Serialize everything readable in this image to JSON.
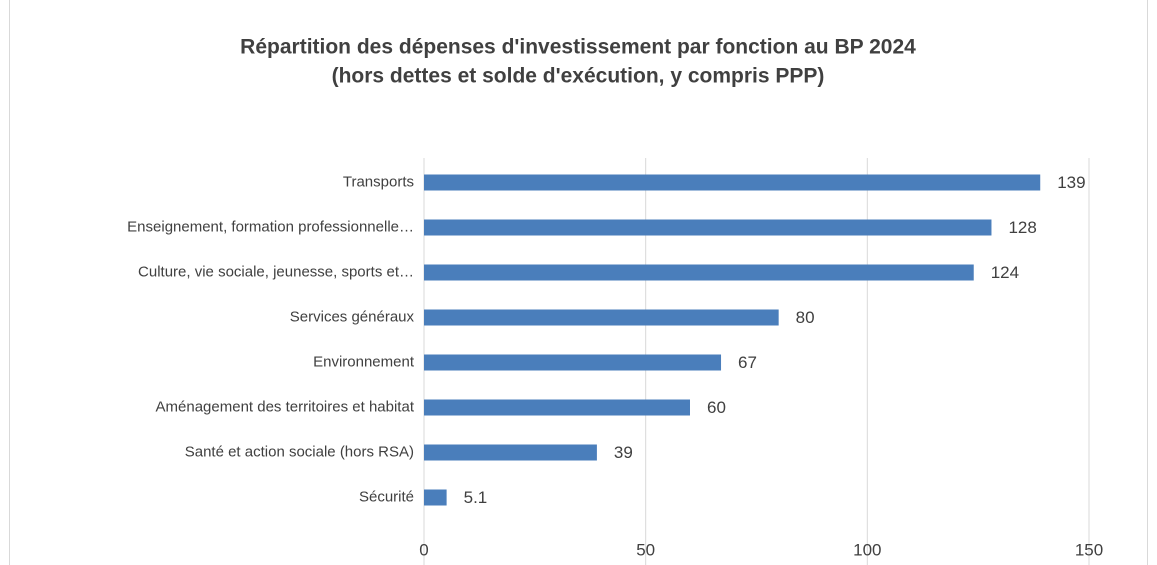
{
  "chart_data": {
    "type": "bar",
    "orientation": "horizontal",
    "title": [
      "Répartition des dépenses d'investissement par fonction au BP 2024",
      "(hors dettes et solde d'exécution, y compris PPP)"
    ],
    "categories": [
      "Transports",
      "Enseignement, formation professionnelle…",
      "Culture, vie sociale, jeunesse, sports et…",
      "Services généraux",
      "Environnement",
      "Aménagement des territoires et habitat",
      "Santé et action sociale (hors RSA)",
      "Sécurité"
    ],
    "values": [
      139,
      128,
      124,
      80,
      67,
      60,
      39,
      5.1
    ],
    "color": "#4a7ebb",
    "xlim": [
      0,
      150
    ],
    "xticks": [
      0,
      50,
      100,
      150
    ],
    "grid": true
  }
}
